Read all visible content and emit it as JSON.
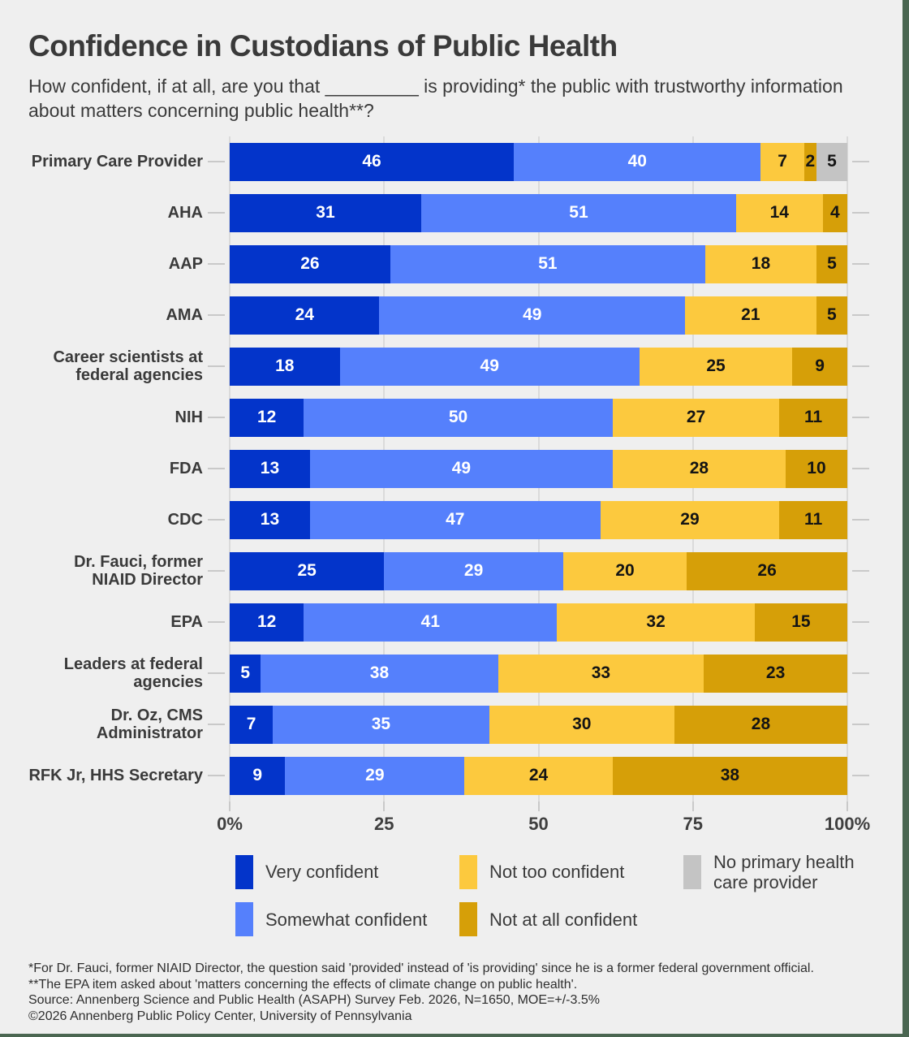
{
  "header": {
    "title": "Confidence in Custodians of Public Health",
    "subtitle": "How confident, if at all, are you that _________ is providing* the public with trustworthy information about matters concerning public health**?"
  },
  "chart_data": {
    "type": "bar",
    "stacked": true,
    "orientation": "horizontal",
    "xlim": [
      0,
      100
    ],
    "x_ticks": [
      "0%",
      "25",
      "50",
      "75",
      "100%"
    ],
    "x_tick_positions": [
      0,
      25,
      50,
      75,
      100
    ],
    "grid": true,
    "legend_position": "bottom",
    "categories": [
      "Primary Care Provider",
      "AHA",
      "AAP",
      "AMA",
      "Career scientists at federal agencies",
      "NIH",
      "FDA",
      "CDC",
      "Dr. Fauci, former NIAID Director",
      "EPA",
      "Leaders at federal agencies",
      "Dr. Oz, CMS Administrator",
      "RFK Jr, HHS Secretary"
    ],
    "series": [
      {
        "name": "Very confident",
        "color": "#0334ca",
        "text_color": "#ffffff",
        "values": [
          46,
          31,
          26,
          24,
          18,
          12,
          13,
          13,
          25,
          12,
          5,
          7,
          9
        ]
      },
      {
        "name": "Somewhat confident",
        "color": "#5580fc",
        "text_color": "#ffffff",
        "values": [
          40,
          51,
          51,
          49,
          49,
          50,
          49,
          47,
          29,
          41,
          38,
          35,
          29
        ]
      },
      {
        "name": "Not too confident",
        "color": "#fcc93e",
        "text_color": "#141414",
        "values": [
          7,
          14,
          18,
          21,
          25,
          27,
          28,
          29,
          20,
          32,
          33,
          30,
          24
        ]
      },
      {
        "name": "Not at all confident",
        "color": "#d69f08",
        "text_color": "#141414",
        "values": [
          2,
          4,
          5,
          5,
          9,
          11,
          10,
          11,
          26,
          15,
          23,
          28,
          38
        ]
      },
      {
        "name": "No primary health care provider",
        "color": "#c4c4c4",
        "text_color": "#141414",
        "values": [
          5,
          0,
          0,
          0,
          0,
          0,
          0,
          0,
          0,
          0,
          0,
          0,
          0
        ]
      }
    ]
  },
  "legend": {
    "items": [
      {
        "label": "Very confident",
        "color": "#0334ca",
        "col": 1,
        "row": 1
      },
      {
        "label": "Not too confident",
        "color": "#fcc93e",
        "col": 2,
        "row": 1
      },
      {
        "label": "No primary health care provider",
        "color": "#c4c4c4",
        "col": 3,
        "row": 1
      },
      {
        "label": "Somewhat confident",
        "color": "#5580fc",
        "col": 1,
        "row": 2
      },
      {
        "label": "Not at all confident",
        "color": "#d69f08",
        "col": 2,
        "row": 2
      }
    ]
  },
  "footnotes": [
    "*For Dr. Fauci, former NIAID Director, the question said 'provided' instead of 'is providing' since he is a former federal government official.",
    "**The EPA item asked about 'matters concerning the effects of climate change on public health'.",
    "Source: Annenberg Science and Public Health (ASAPH) Survey Feb. 2026, N=1650, MOE=+/-3.5%",
    "©2026 Annenberg Public Policy Center, University of Pennsylvania"
  ],
  "colors": {
    "background": "#efefef",
    "frame_accent": "#4a6651",
    "gridline": "#dadada",
    "tick": "#c9c9c9",
    "text": "#3a3a3a"
  }
}
